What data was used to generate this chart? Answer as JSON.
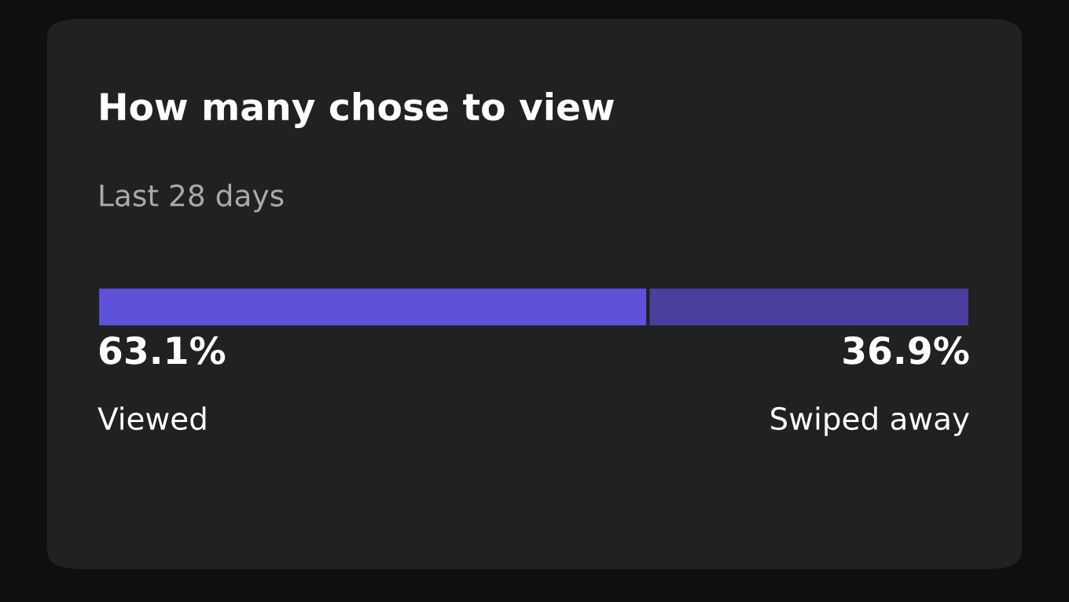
{
  "chart_data": {
    "type": "bar",
    "orientation": "horizontal",
    "stacked": true,
    "title": "How many chose to view",
    "subtitle": "Last 28 days",
    "categories": [
      null
    ],
    "xlim": [
      0,
      100
    ],
    "series": [
      {
        "name": "Viewed",
        "color": "#5e52d8",
        "values": [
          63.1
        ],
        "value_labels": [
          "63.1%"
        ]
      },
      {
        "name": "Swiped away",
        "color": "#4a3f9f",
        "values": [
          36.9
        ],
        "value_labels": [
          "36.9%"
        ]
      }
    ]
  }
}
